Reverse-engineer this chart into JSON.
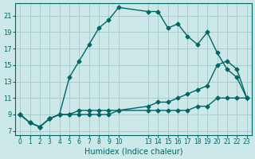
{
  "xlabel": "Humidex (Indice chaleur)",
  "ylabel": "",
  "bg_color": "#cce8e8",
  "grid_color": "#aacccc",
  "line_color": "#006666",
  "ylim": [
    6.5,
    22.5
  ],
  "xlim": [
    -0.5,
    23.5
  ],
  "yticks": [
    7,
    9,
    11,
    13,
    15,
    17,
    19,
    21
  ],
  "xticks": [
    0,
    1,
    2,
    3,
    4,
    5,
    6,
    7,
    8,
    9,
    10,
    13,
    14,
    15,
    16,
    17,
    18,
    19,
    20,
    21,
    22,
    23
  ],
  "line1_x": [
    0,
    1,
    2,
    3,
    4,
    5,
    6,
    7,
    8,
    9,
    10,
    13,
    14,
    15,
    16,
    17,
    18,
    19,
    20,
    21,
    22,
    23
  ],
  "line1_y": [
    9,
    8,
    7.5,
    8.5,
    9,
    13.5,
    15.5,
    17.5,
    19.5,
    20.5,
    22,
    21.5,
    21.5,
    19.5,
    20,
    18.5,
    17.5,
    19,
    16.5,
    14.5,
    13.5,
    11
  ],
  "line2_x": [
    0,
    1,
    2,
    3,
    4,
    5,
    6,
    7,
    8,
    9,
    10,
    13,
    14,
    15,
    16,
    17,
    18,
    19,
    20,
    21,
    22,
    23
  ],
  "line2_y": [
    9,
    8,
    7.5,
    8.5,
    9,
    9,
    9.5,
    9.5,
    9.5,
    9.5,
    9.5,
    10,
    10.5,
    10.5,
    11,
    11.5,
    12,
    12.5,
    15,
    15.5,
    14.5,
    11
  ],
  "line3_x": [
    0,
    1,
    2,
    3,
    4,
    5,
    6,
    7,
    8,
    9,
    10,
    13,
    14,
    15,
    16,
    17,
    18,
    19,
    20,
    21,
    22,
    23
  ],
  "line3_y": [
    9,
    8,
    7.5,
    8.5,
    9,
    9,
    9,
    9,
    9,
    9,
    9.5,
    9.5,
    9.5,
    9.5,
    9.5,
    9.5,
    10,
    10,
    11,
    11,
    11,
    11
  ]
}
